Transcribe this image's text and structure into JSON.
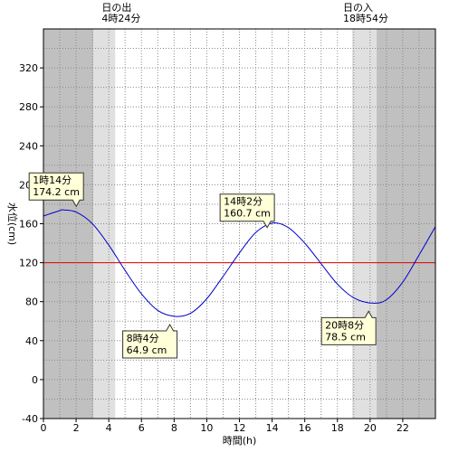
{
  "chart_data": {
    "type": "line",
    "xlabel": "時間(h)",
    "ylabel": "水位(cm)",
    "xlim": [
      0,
      24
    ],
    "ylim": [
      -40,
      360
    ],
    "x_ticks": [
      0,
      2,
      4,
      6,
      8,
      10,
      12,
      14,
      16,
      18,
      20,
      22
    ],
    "y_ticks": [
      -40,
      0,
      40,
      80,
      120,
      160,
      200,
      240,
      280,
      320
    ],
    "grid": true,
    "reference_line": {
      "value": 120,
      "color": "#e00000"
    },
    "daylight": {
      "sunrise": {
        "label": "日の出",
        "time_text": "4時24分",
        "hour": 4.4
      },
      "sunset": {
        "label": "日の入",
        "time_text": "18時54分",
        "hour": 18.9
      },
      "night_color": "#c0c0c0",
      "twilight_color": "#e0e0e0",
      "day_color": "#ffffff"
    },
    "series": [
      {
        "color": "#0000cc",
        "x": [
          0,
          1,
          1.23,
          2,
          3,
          4,
          5,
          6,
          7,
          8.07,
          9,
          10,
          11,
          12,
          13,
          14.03,
          15,
          16,
          17,
          18,
          19,
          20.13,
          21,
          22,
          23,
          24
        ],
        "y": [
          168,
          173.5,
          174.2,
          172,
          160,
          138,
          112,
          88,
          71,
          64.9,
          68,
          83,
          106,
          130,
          151,
          160.7,
          156,
          140,
          119,
          98,
          84,
          78.5,
          82,
          100,
          128,
          157
        ]
      }
    ],
    "annotations": [
      {
        "time": "1時14分",
        "value": "174.2 cm",
        "x": 1.23,
        "y": 174.2
      },
      {
        "time": "8時4分",
        "value": "64.9 cm",
        "x": 8.07,
        "y": 64.9
      },
      {
        "time": "14時2分",
        "value": "160.7 cm",
        "x": 14.03,
        "y": 160.7
      },
      {
        "time": "20時8分",
        "value": "78.5 cm",
        "x": 20.13,
        "y": 78.5
      }
    ]
  }
}
